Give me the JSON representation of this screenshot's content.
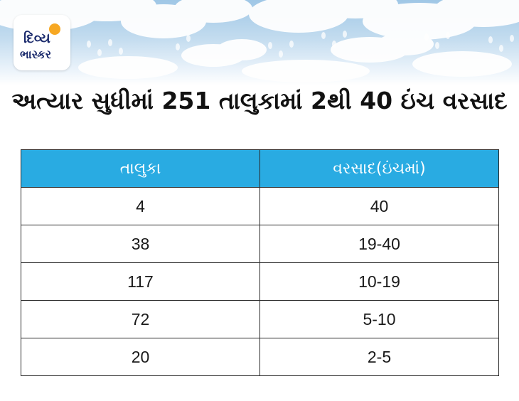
{
  "brand": {
    "logo_line1": "દિવ્ય",
    "logo_line2": "ભાસ્કર",
    "sun_icon": "sun-icon",
    "sun_color": "#f7a823",
    "text_color": "#1a2a6c"
  },
  "headline": "અત્યાર સુધીમાં 251 તાલુકામાં 2થી 40 ઇંચ વરસાદ",
  "table": {
    "headers": [
      "તાલુકા",
      "વરસાદ(ઇંચમાં)"
    ],
    "header_color": "#29abe2",
    "rows": [
      [
        "4",
        "40"
      ],
      [
        "38",
        "19-40"
      ],
      [
        "117",
        "10-19"
      ],
      [
        "72",
        "5-10"
      ],
      [
        "20",
        "2-5"
      ]
    ]
  }
}
